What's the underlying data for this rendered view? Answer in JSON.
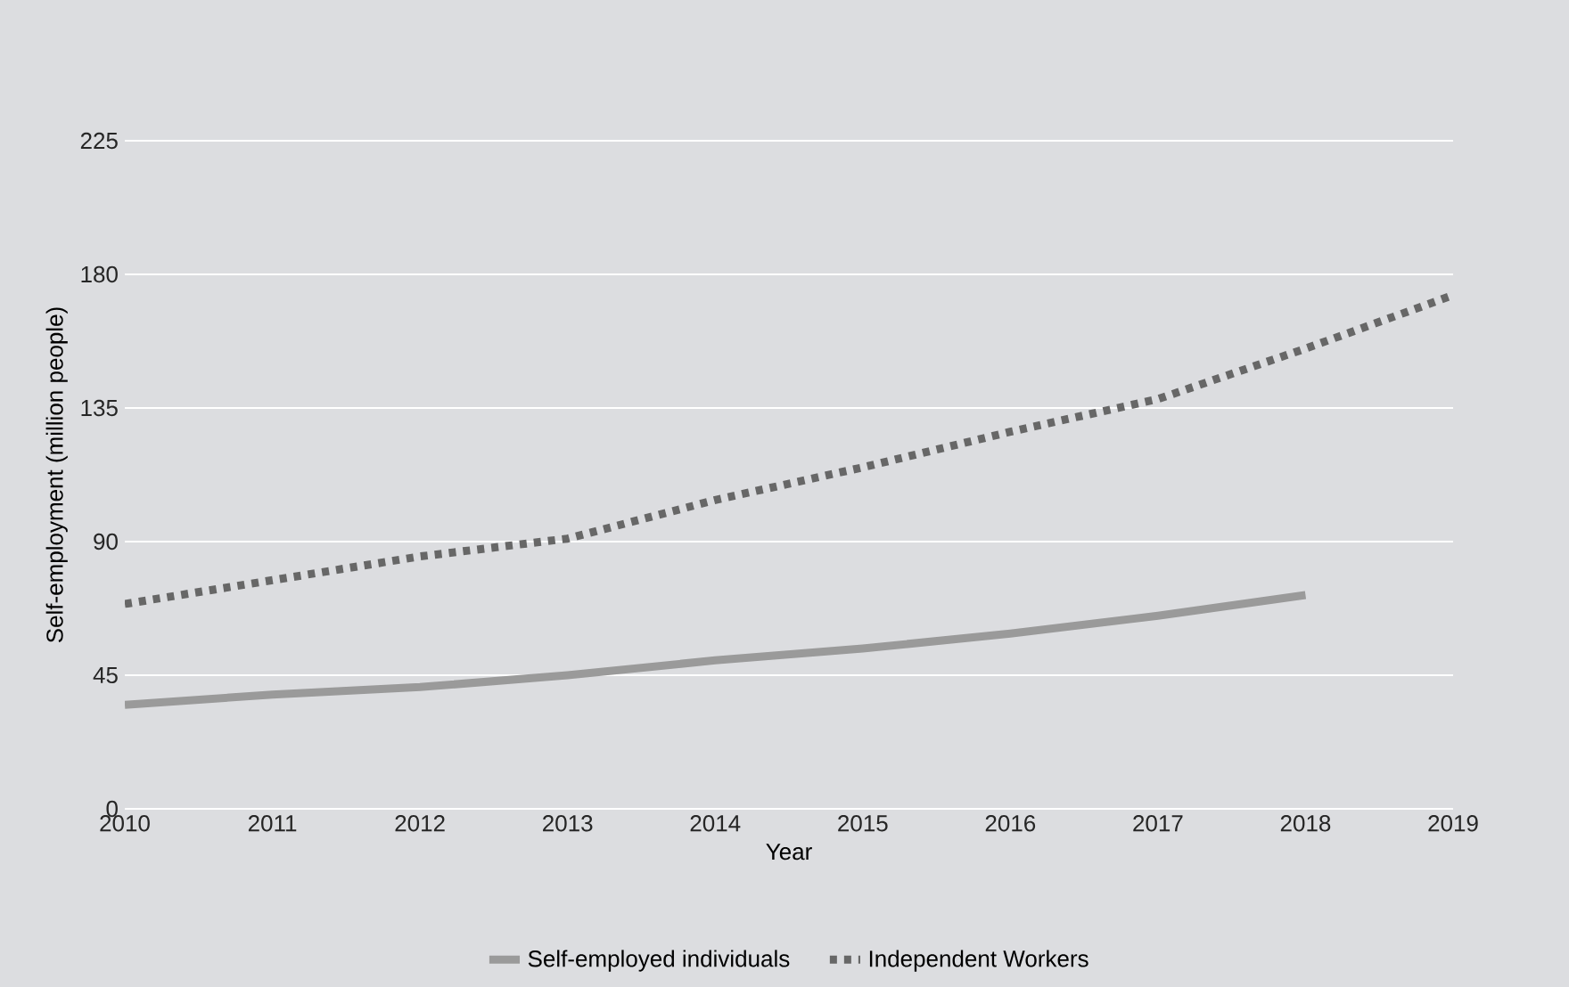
{
  "chart_data": {
    "type": "line",
    "xlabel": "Year",
    "ylabel": "Self-employment (million people)",
    "x": [
      2010,
      2011,
      2012,
      2013,
      2014,
      2015,
      2016,
      2017,
      2018,
      2019
    ],
    "series": [
      {
        "name": "Self-employed individuals",
        "color": "#9a9a9a",
        "line_style": "solid",
        "values": [
          35,
          38.5,
          41,
          45,
          50,
          54,
          59,
          65,
          72,
          null
        ]
      },
      {
        "name": "Independent Workers",
        "color": "#676767",
        "line_style": "dotted",
        "values": [
          69,
          77,
          85,
          91,
          104,
          115,
          127,
          138,
          155,
          173
        ]
      }
    ],
    "xlim": [
      2010,
      2019
    ],
    "xticks": [
      2010,
      2011,
      2012,
      2013,
      2014,
      2015,
      2016,
      2017,
      2018,
      2019
    ],
    "ylim": [
      0,
      225
    ],
    "yticks": [
      0,
      45,
      90,
      135,
      180,
      225
    ],
    "grid": "y",
    "legend": "bottom",
    "marker": "none"
  }
}
